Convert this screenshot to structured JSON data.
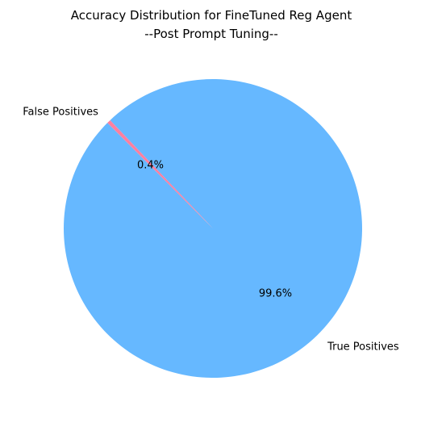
{
  "chart_data": {
    "type": "pie",
    "title": "Accuracy Distribution for FineTuned Reg Agent",
    "subtitle": "--Post Prompt Tuning--",
    "labels": [
      "True Positives",
      "False Positives"
    ],
    "values": [
      99.6,
      0.4
    ],
    "autopct_labels": [
      "99.6%",
      "0.4%"
    ],
    "colors": [
      "#66b8ff",
      "#ff7f9f"
    ],
    "start_angle_deg": 135,
    "direction": "counterclockwise",
    "legend": "none"
  }
}
